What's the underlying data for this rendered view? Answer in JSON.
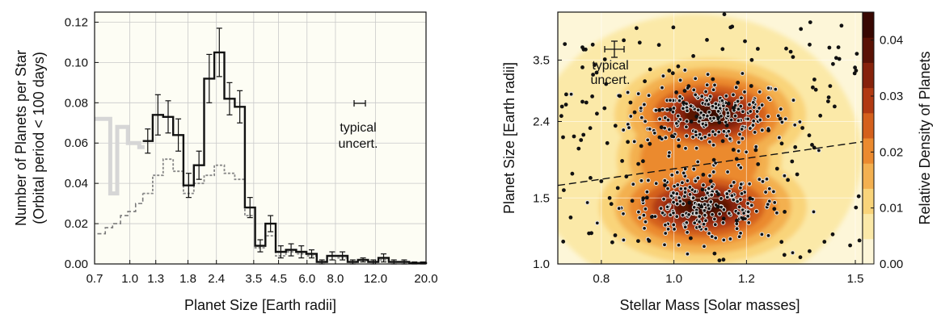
{
  "chart_data": [
    {
      "type": "line",
      "xlabel": "Planet Size [Earth radii]",
      "ylabel_line1": "Number of Planets per Star",
      "ylabel_line2": "(Orbital period < 100 days)",
      "x_scale": "log",
      "xlim": [
        0.7,
        20.0
      ],
      "ylim": [
        0.0,
        0.125
      ],
      "x_ticks": [
        {
          "value": 0.7,
          "label": "0.7"
        },
        {
          "value": 1.0,
          "label": "1.0"
        },
        {
          "value": 1.3,
          "label": "1.3"
        },
        {
          "value": 1.8,
          "label": "1.8"
        },
        {
          "value": 2.4,
          "label": "2.4"
        },
        {
          "value": 3.5,
          "label": "3.5"
        },
        {
          "value": 4.5,
          "label": "4.5"
        },
        {
          "value": 6.0,
          "label": "6.0"
        },
        {
          "value": 8.0,
          "label": "8.0"
        },
        {
          "value": 12.0,
          "label": "12.0"
        },
        {
          "value": 20.0,
          "label": "20.0"
        }
      ],
      "y_ticks": [
        {
          "value": 0.0,
          "label": "0.00"
        },
        {
          "value": 0.02,
          "label": "0.02"
        },
        {
          "value": 0.04,
          "label": "0.04"
        },
        {
          "value": 0.06,
          "label": "0.06"
        },
        {
          "value": 0.08,
          "label": "0.08"
        },
        {
          "value": 0.1,
          "label": "0.10"
        },
        {
          "value": 0.12,
          "label": "0.12"
        }
      ],
      "annotation": {
        "line1": "typical",
        "line2": "uncert."
      },
      "bin_edges": [
        1.14,
        1.26,
        1.4,
        1.55,
        1.72,
        1.91,
        2.12,
        2.35,
        2.6,
        2.89,
        3.2,
        3.55,
        3.94,
        4.37,
        4.85,
        5.38,
        5.97,
        6.62,
        7.35,
        8.15,
        9.05,
        10.04,
        11.14,
        12.36,
        13.72,
        15.22,
        16.89,
        18.74,
        20.0
      ],
      "series": [
        {
          "style": "solid-black-with-errorbars",
          "values": [
            0.061,
            0.074,
            0.073,
            0.064,
            0.039,
            0.049,
            0.092,
            0.105,
            0.082,
            0.078,
            0.028,
            0.009,
            0.02,
            0.006,
            0.007,
            0.006,
            0.005,
            0.001,
            0.004,
            0.004,
            0.001,
            0.002,
            0.001,
            0.003,
            0.001,
            0.001,
            0.0005,
            0.0005
          ],
          "errors": [
            0.006,
            0.01,
            0.008,
            0.008,
            0.006,
            0.007,
            0.012,
            0.012,
            0.008,
            0.008,
            0.005,
            0.003,
            0.004,
            0.003,
            0.003,
            0.003,
            0.002,
            0.001,
            0.002,
            0.002,
            0.001,
            0.001,
            0.001,
            0.002,
            0.001,
            0.001,
            0.0005,
            0.0005
          ]
        },
        {
          "style": "dotted-gray",
          "values": [
            0.035,
            0.044,
            0.052,
            0.046,
            0.035,
            0.04,
            0.044,
            0.049,
            0.045,
            0.042,
            0.024,
            0.008,
            0.014,
            0.004,
            0.006,
            0.005,
            0.004,
            0.001,
            0.004,
            0.003,
            0.001,
            0.002,
            0.001,
            0.002,
            0.001,
            0.001,
            0.0005,
            0.0005
          ]
        },
        {
          "style": "dashed-gray-low-completeness",
          "x": [
            0.72,
            0.78,
            0.84,
            0.91,
            0.98,
            1.06,
            1.14
          ],
          "values": [
            0.015,
            0.018,
            0.02,
            0.024,
            0.026,
            0.03,
            0.035
          ]
        },
        {
          "style": "thick-light-gray",
          "x": [
            0.7,
            0.82,
            0.82,
            0.88,
            0.88,
            0.98,
            0.98,
            1.1,
            1.1,
            1.16
          ],
          "values": [
            0.072,
            0.072,
            0.035,
            0.035,
            0.068,
            0.068,
            0.06,
            0.06,
            0.058,
            0.058
          ]
        }
      ]
    },
    {
      "type": "heatmap",
      "xlabel": "Stellar Mass [Solar masses]",
      "ylabel": "Planet Size [Earth radii]",
      "colorbar_label": "Relative Density of Planets",
      "x_scale": "linear",
      "y_scale": "log",
      "xlim": [
        0.68,
        1.52
      ],
      "ylim": [
        1.0,
        4.7
      ],
      "x_ticks": [
        {
          "value": 0.8,
          "label": "0.8"
        },
        {
          "value": 1.0,
          "label": "1.0"
        },
        {
          "value": 1.2,
          "label": "1.2"
        },
        {
          "value": 1.5,
          "label": "1.5"
        }
      ],
      "y_ticks": [
        {
          "value": 1.0,
          "label": "1.0"
        },
        {
          "value": 1.5,
          "label": "1.5"
        },
        {
          "value": 2.4,
          "label": "2.4"
        },
        {
          "value": 3.5,
          "label": "3.5"
        }
      ],
      "colorbar_ticks": [
        {
          "value": 0.0,
          "label": "0.00"
        },
        {
          "value": 0.01,
          "label": "0.01"
        },
        {
          "value": 0.02,
          "label": "0.02"
        },
        {
          "value": 0.03,
          "label": "0.03"
        },
        {
          "value": 0.04,
          "label": "0.04"
        }
      ],
      "colorbar_range": [
        0.0,
        0.045
      ],
      "colors": [
        "#fdf6d8",
        "#fbe9a8",
        "#f9d47a",
        "#f3b050",
        "#eb8a2f",
        "#d4601c",
        "#b13a12",
        "#86220b",
        "#5a1205",
        "#380802"
      ],
      "annotation": {
        "line1": "typical",
        "line2": "uncert."
      },
      "density_peaks": [
        {
          "mass": 1.1,
          "radius": 2.5,
          "amplitude": 1.0
        },
        {
          "mass": 1.08,
          "radius": 1.42,
          "amplitude": 1.0
        }
      ],
      "gap_line": {
        "x": [
          0.68,
          1.52
        ],
        "y": [
          1.62,
          2.12
        ]
      }
    }
  ]
}
